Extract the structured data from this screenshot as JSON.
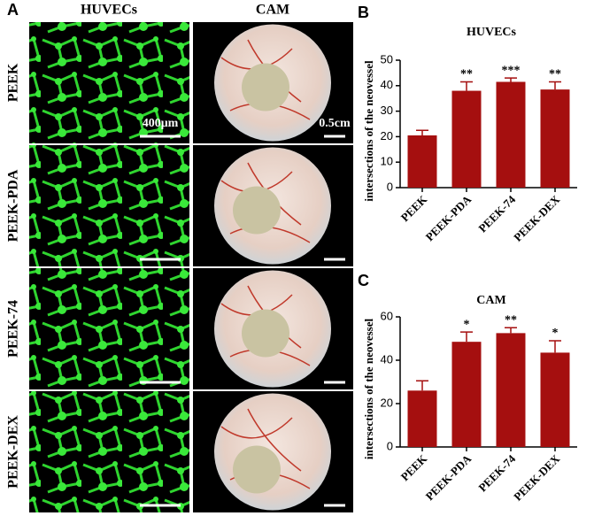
{
  "panel_a": {
    "label": "A",
    "columns": [
      "HUVECs",
      "CAM"
    ],
    "rows": [
      "PEEK",
      "PEEK-PDA",
      "PEEK-74",
      "PEEK-DEX"
    ],
    "scale_bars": [
      "400μm",
      "0.5cm"
    ]
  },
  "chart_data": [
    {
      "type": "bar",
      "panel": "B",
      "title": "HUVECs",
      "y_label": "intersections of the neovessel",
      "categories": [
        "PEEK",
        "PEEK-PDA",
        "PEEK-74",
        "PEEK-DEX"
      ],
      "values": [
        20.5,
        38,
        41.5,
        38.5
      ],
      "errors": [
        2,
        3.5,
        1.5,
        3
      ],
      "annotations": [
        null,
        "**",
        "***",
        "**"
      ],
      "color": "#a50f0f",
      "ylim": [
        0,
        50
      ],
      "yticks": [
        0,
        10,
        20,
        30,
        40,
        50
      ]
    },
    {
      "type": "bar",
      "panel": "C",
      "title": "CAM",
      "y_label": "intersections of the neovessel",
      "categories": [
        "PEEK",
        "PEEK-PDA",
        "PEEK-74",
        "PEEK-DEX"
      ],
      "values": [
        26,
        48.5,
        52.5,
        43.5
      ],
      "errors": [
        4.5,
        4.5,
        2.5,
        5.5
      ],
      "annotations": [
        null,
        "*",
        "**",
        "*"
      ],
      "color": "#a50f0f",
      "ylim": [
        0,
        60
      ],
      "yticks": [
        0,
        20,
        40,
        60
      ]
    }
  ]
}
